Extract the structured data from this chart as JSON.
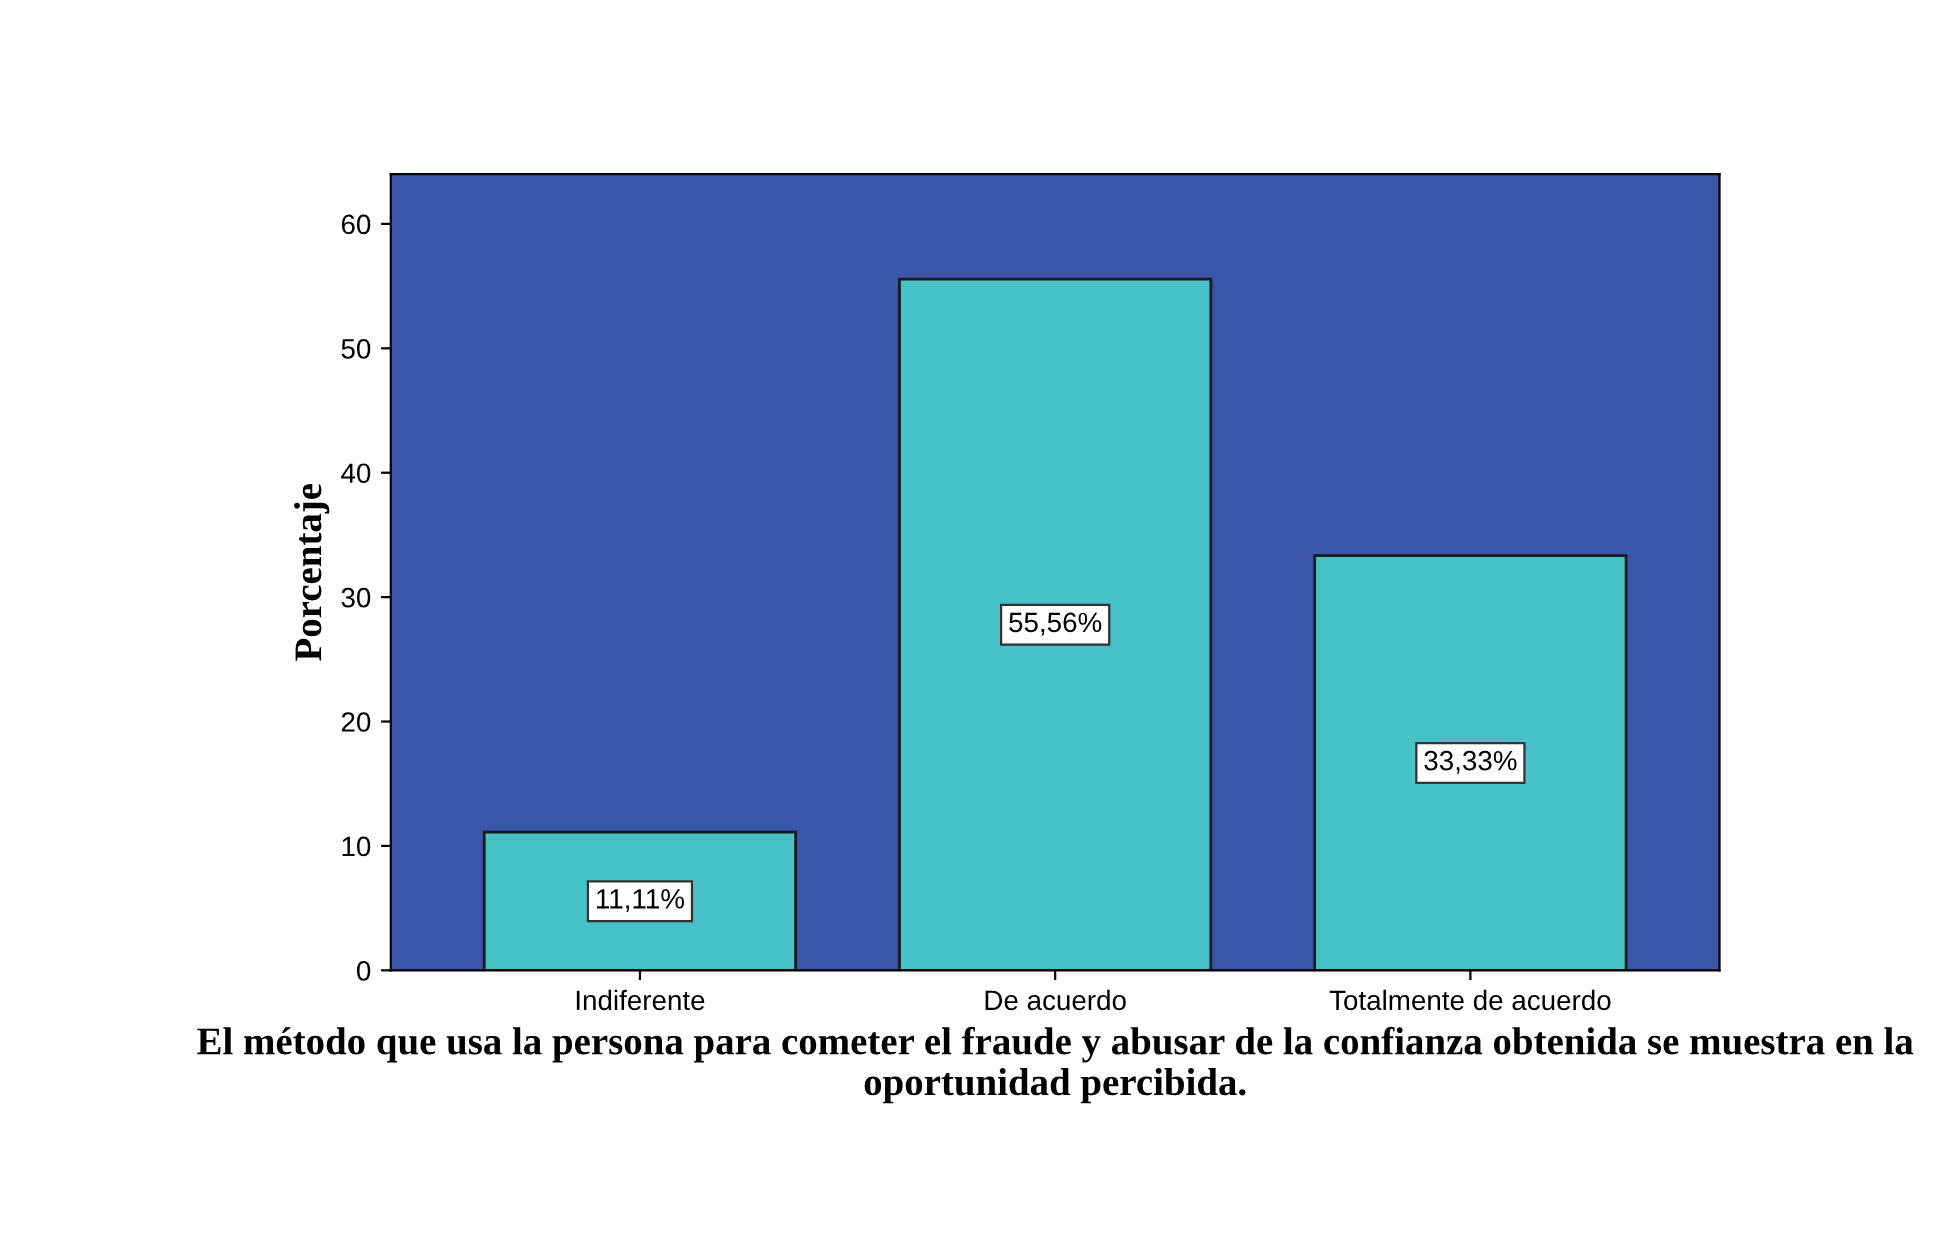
{
  "chart_data": {
    "type": "bar",
    "xlabel": "El método que usa la persona para cometer el fraude y abusar de la confianza obtenida se muestra en la oportunidad percibida.",
    "ylabel": "Porcentaje",
    "categories": [
      "Indiferente",
      "De acuerdo",
      "Totalmente de acuerdo"
    ],
    "values": [
      11.11,
      55.56,
      33.33
    ],
    "value_labels": [
      "11,11%",
      "55,56%",
      "33,33%"
    ],
    "color": "#46c1c6",
    "ylim": [
      0,
      64
    ],
    "yticks": [
      0,
      10,
      20,
      30,
      40,
      50,
      60
    ],
    "grid": false,
    "legend": false
  }
}
